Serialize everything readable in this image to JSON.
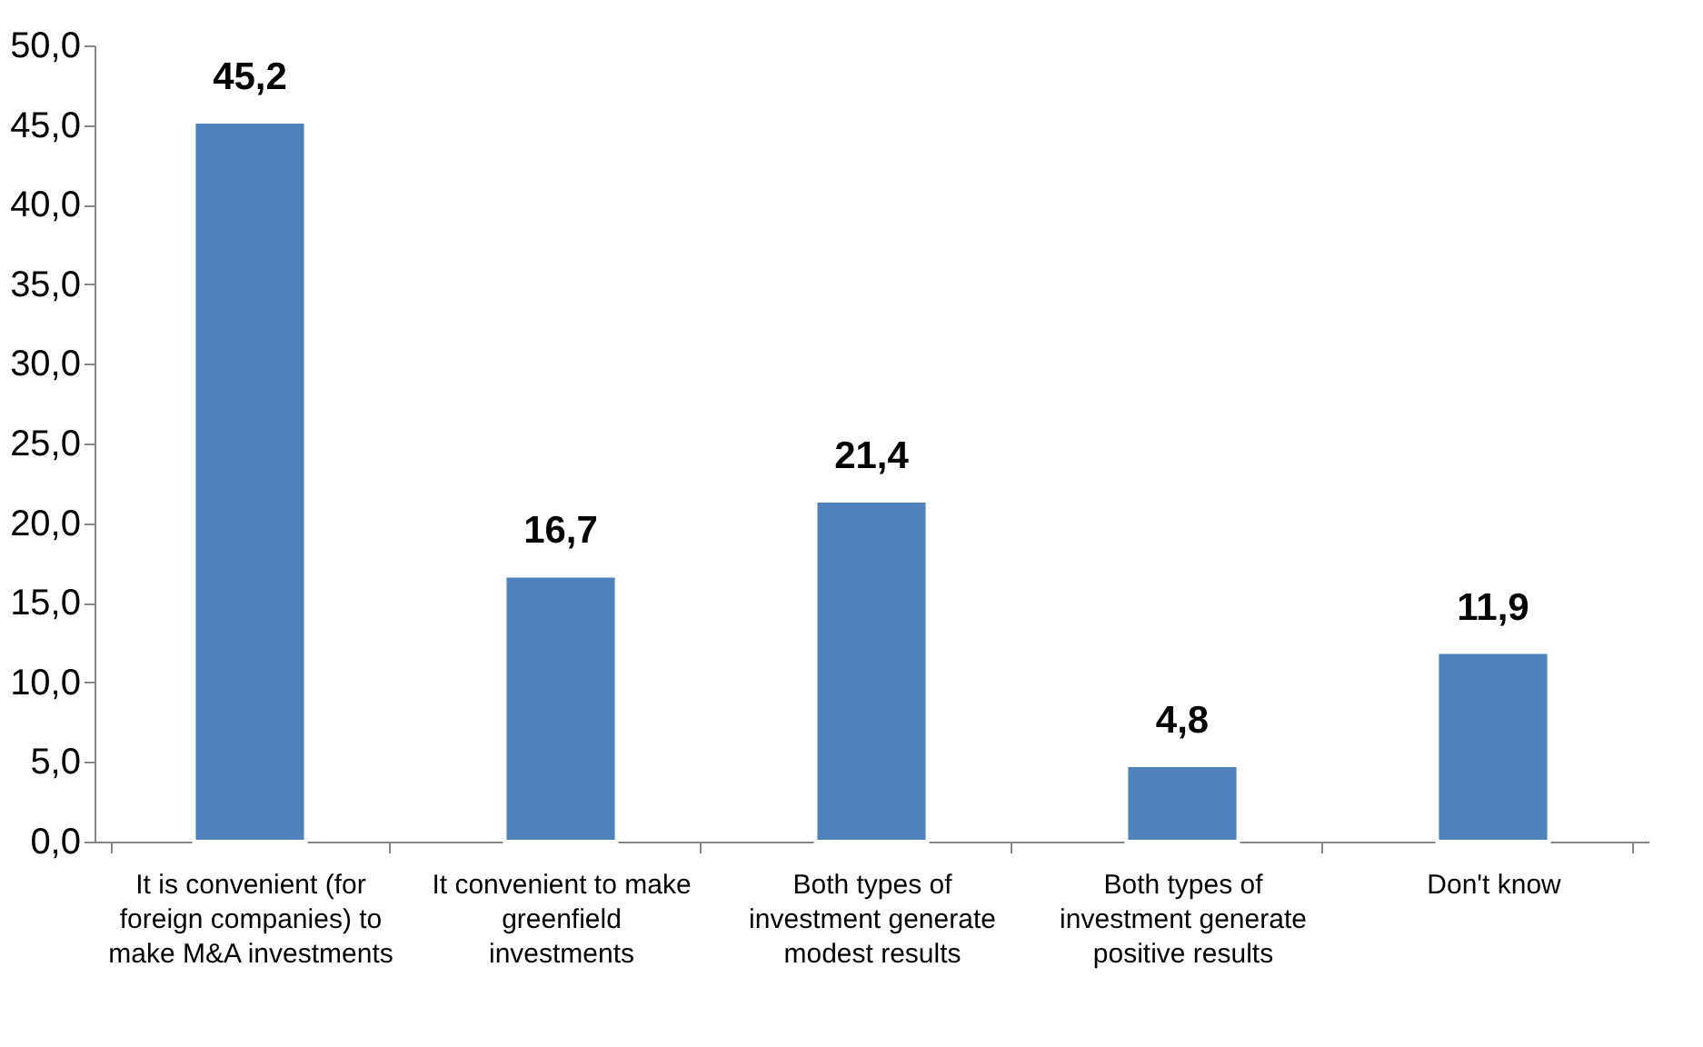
{
  "chart_data": {
    "type": "bar",
    "categories": [
      "It is convenient (for foreign companies) to make M&A investments",
      "It convenient to make greenfield investments",
      "Both types of investment generate modest results",
      "Both types of investment generate positive results",
      "Don't know"
    ],
    "values": [
      45.2,
      16.7,
      21.4,
      4.8,
      11.9
    ],
    "value_labels": [
      "45,2",
      "16,7",
      "21,4",
      "4,8",
      "11,9"
    ],
    "color": "#4f81bd",
    "ylim": [
      0,
      50
    ],
    "yticks": [
      {
        "value": 0,
        "label": "0,0"
      },
      {
        "value": 5,
        "label": "5,0"
      },
      {
        "value": 10,
        "label": "10,0"
      },
      {
        "value": 15,
        "label": "15,0"
      },
      {
        "value": 20,
        "label": "20,0"
      },
      {
        "value": 25,
        "label": "25,0"
      },
      {
        "value": 30,
        "label": "30,0"
      },
      {
        "value": 35,
        "label": "35,0"
      },
      {
        "value": 40,
        "label": "40,0"
      },
      {
        "value": 45,
        "label": "45,0"
      },
      {
        "value": 50,
        "label": "50,0"
      }
    ],
    "grid": false
  }
}
